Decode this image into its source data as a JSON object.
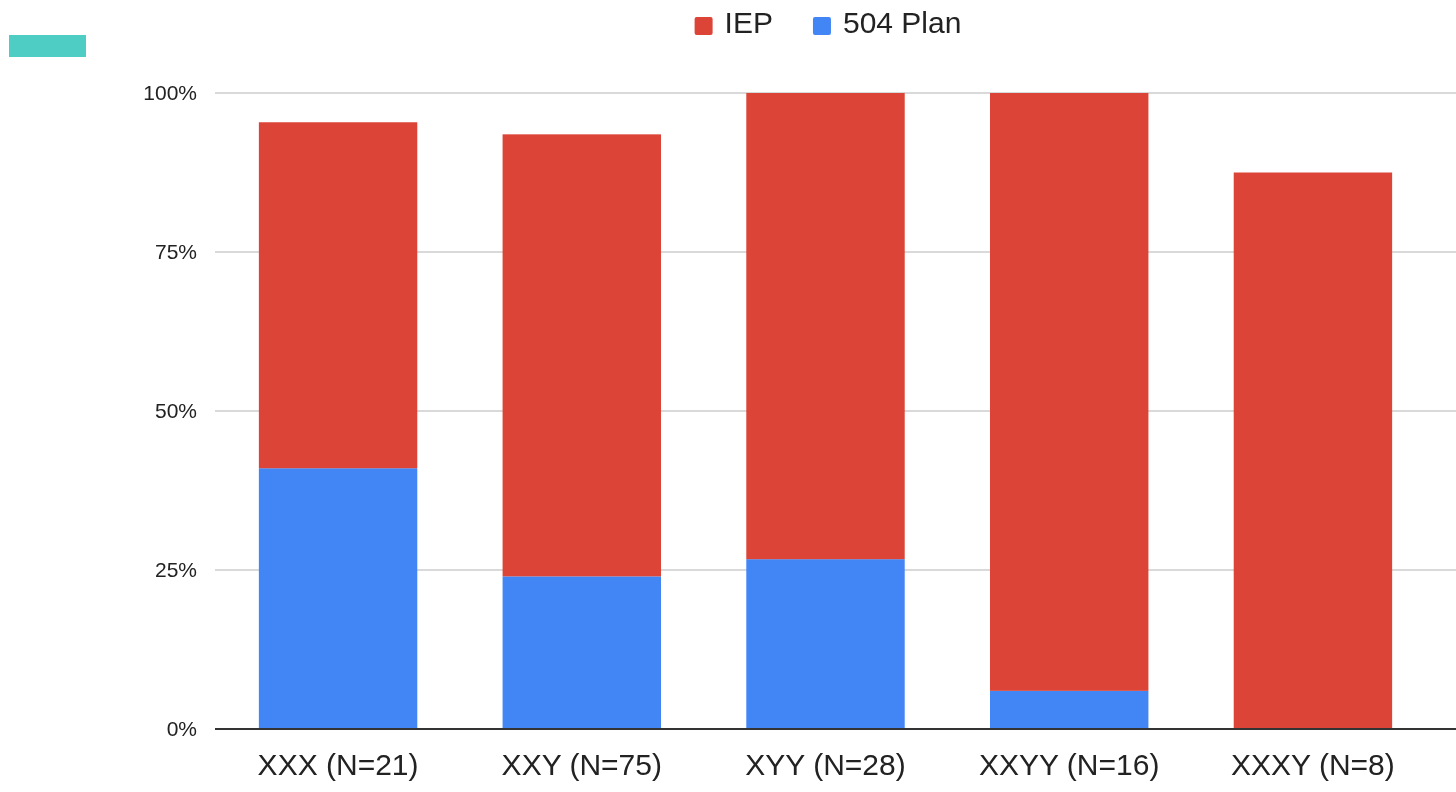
{
  "chart_data": {
    "type": "bar",
    "stacked": true,
    "categories": [
      "XXX (N=21)",
      "XXY (N=75)",
      "XYY (N=28)",
      "XXYY (N=16)",
      "XXXY (N=8)"
    ],
    "series": [
      {
        "name": "504 Plan",
        "color": "#4285f4",
        "values": [
          41,
          24,
          26.7,
          6,
          0
        ]
      },
      {
        "name": "IEP",
        "color": "#db4437",
        "values": [
          54.4,
          69.5,
          73.3,
          94,
          87.5
        ]
      }
    ],
    "ylim": [
      0,
      100
    ],
    "yticks": [
      {
        "value": 0,
        "label": "0%"
      },
      {
        "value": 25,
        "label": "25%"
      },
      {
        "value": 50,
        "label": "50%"
      },
      {
        "value": 75,
        "label": "75%"
      },
      {
        "value": 100,
        "label": "100%"
      }
    ],
    "grid": "y",
    "legend": "top"
  }
}
